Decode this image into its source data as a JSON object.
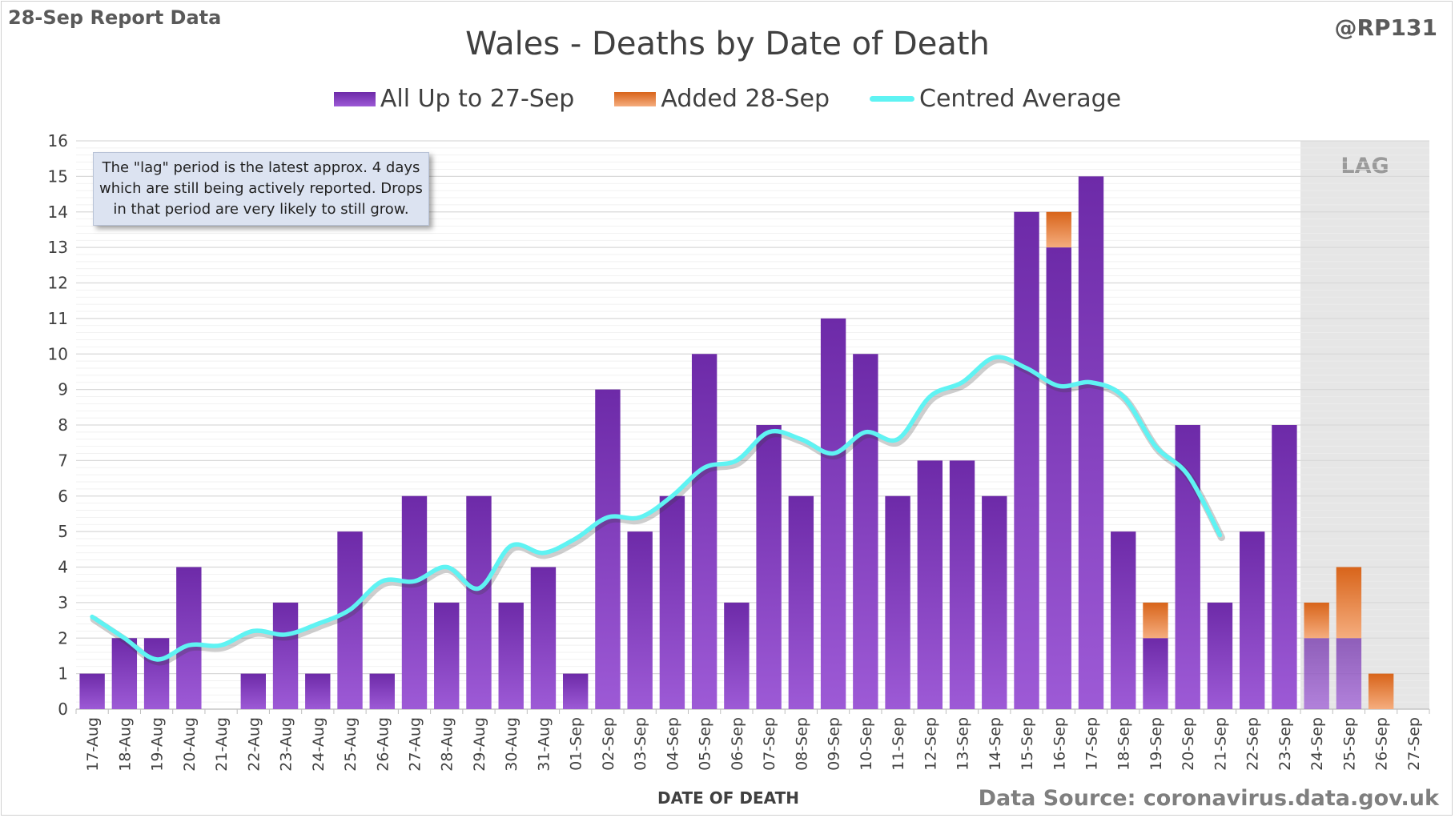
{
  "header": {
    "report_label": "28-Sep Report Data",
    "author": "@RP131",
    "source": "Data Source: coronavirus.data.gov.uk"
  },
  "note": "The \"lag\" period is the latest approx. 4 days which are still being actively reported.  Drops in that period are very likely to still grow.",
  "colors": {
    "purple_top": "#6d2aa8",
    "purple_bottom": "#9d5ad6",
    "orange_top": "#d8641a",
    "orange_bottom": "#f5ad7e",
    "average_line": "#5ff3f3",
    "lag_shade": "#e6e6e6",
    "grid": "#d9d9d9"
  },
  "chart_data": {
    "type": "bar",
    "stacked": true,
    "title": "Wales - Deaths by Date of Death",
    "xlabel": "DATE OF DEATH",
    "ylabel": "",
    "ylim": [
      0,
      16
    ],
    "yticks": [
      0,
      1,
      2,
      3,
      4,
      5,
      6,
      7,
      8,
      9,
      10,
      11,
      12,
      13,
      14,
      15,
      16
    ],
    "grid": true,
    "legend_position": "top",
    "categories": [
      "17-Aug",
      "18-Aug",
      "19-Aug",
      "20-Aug",
      "21-Aug",
      "22-Aug",
      "23-Aug",
      "24-Aug",
      "25-Aug",
      "26-Aug",
      "27-Aug",
      "28-Aug",
      "29-Aug",
      "30-Aug",
      "31-Aug",
      "01-Sep",
      "02-Sep",
      "03-Sep",
      "04-Sep",
      "05-Sep",
      "06-Sep",
      "07-Sep",
      "08-Sep",
      "09-Sep",
      "10-Sep",
      "11-Sep",
      "12-Sep",
      "13-Sep",
      "14-Sep",
      "15-Sep",
      "16-Sep",
      "17-Sep",
      "18-Sep",
      "19-Sep",
      "20-Sep",
      "21-Sep",
      "22-Sep",
      "23-Sep",
      "24-Sep",
      "25-Sep",
      "26-Sep",
      "27-Sep"
    ],
    "series": [
      {
        "name": "All Up to 27-Sep",
        "kind": "bar",
        "values": [
          1,
          2,
          2,
          4,
          0,
          1,
          3,
          1,
          5,
          1,
          6,
          3,
          6,
          3,
          4,
          1,
          9,
          5,
          6,
          10,
          3,
          8,
          6,
          11,
          10,
          6,
          7,
          7,
          6,
          14,
          13,
          15,
          5,
          2,
          8,
          3,
          5,
          8,
          2,
          2,
          0,
          0
        ]
      },
      {
        "name": "Added 28-Sep",
        "kind": "bar",
        "values": [
          0,
          0,
          0,
          0,
          0,
          0,
          0,
          0,
          0,
          0,
          0,
          0,
          0,
          0,
          0,
          0,
          0,
          0,
          0,
          0,
          0,
          0,
          0,
          0,
          0,
          0,
          0,
          0,
          0,
          0,
          1,
          0,
          0,
          1,
          0,
          0,
          0,
          0,
          1,
          2,
          1,
          0
        ]
      },
      {
        "name": "Centred Average",
        "kind": "line",
        "values": [
          2.6,
          2.0,
          1.4,
          1.8,
          1.8,
          2.2,
          2.1,
          2.4,
          2.8,
          3.6,
          3.6,
          4.0,
          3.4,
          4.6,
          4.4,
          4.8,
          5.4,
          5.4,
          6.0,
          6.8,
          7.0,
          7.8,
          7.6,
          7.2,
          7.8,
          7.6,
          8.8,
          9.2,
          9.9,
          9.6,
          9.1,
          9.2,
          8.8,
          7.4,
          6.6,
          4.9,
          null,
          null,
          null,
          null,
          null,
          null
        ]
      }
    ],
    "lag_region": {
      "label": "LAG",
      "categories": [
        "24-Sep",
        "25-Sep",
        "26-Sep",
        "27-Sep"
      ]
    }
  }
}
